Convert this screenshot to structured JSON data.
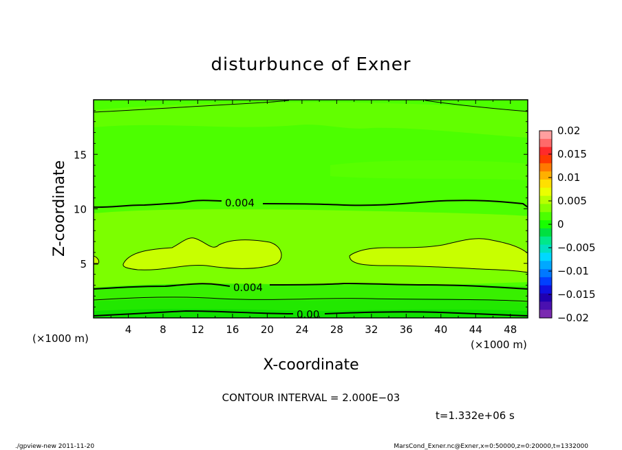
{
  "chart_data": {
    "type": "heatmap",
    "title": "disturbunce of Exner",
    "xlabel": "X-coordinate",
    "ylabel": "Z-coordinate",
    "x_unit": "(×1000 m)",
    "y_unit": "(×1000 m)",
    "xlim": [
      0,
      50
    ],
    "ylim": [
      0,
      20
    ],
    "x_ticks": [
      4,
      8,
      12,
      16,
      20,
      24,
      28,
      32,
      36,
      40,
      44,
      48
    ],
    "y_ticks": [
      5,
      10,
      15
    ],
    "colorbar": {
      "ticks": [
        0.02,
        0.015,
        0.01,
        0.005,
        0,
        -0.005,
        -0.01,
        -0.015,
        -0.02
      ],
      "tick_labels": [
        "0.02",
        "0.015",
        "0.01",
        "0.005",
        "0",
        "−0.005",
        "−0.01",
        "−0.015",
        "−0.02"
      ],
      "colors_top_to_bottom": [
        "#ff9f9f",
        "#ff6a6a",
        "#ff2a2a",
        "#ff3a00",
        "#ff7a00",
        "#ffb000",
        "#ffe000",
        "#eaff00",
        "#b8ff00",
        "#86ff00",
        "#4cff00",
        "#18ff00",
        "#00e040",
        "#00e88a",
        "#00e0c0",
        "#00d8ff",
        "#00a8ff",
        "#0078ff",
        "#0040ff",
        "#1010e0",
        "#2000b0",
        "#4a10b0",
        "#7a2ab0"
      ]
    },
    "contour_labels": [
      "0.004",
      "0.004",
      "0.00"
    ],
    "contour_interval": "CONTOUR INTERVAL = 2.000E−03",
    "time_label": "t=1.332e+06 s"
  },
  "footer": {
    "left": "./gpview-new  2011-11-20",
    "right": "MarsCond_Exner.nc@Exner,x=0:50000,z=0:20000,t=1332000"
  },
  "colors": {
    "background": "#ffffff",
    "field_main": "#4cff00",
    "field_light": "#6eff00",
    "field_yellow": "#c8ff00",
    "field_band": "#30f000"
  }
}
